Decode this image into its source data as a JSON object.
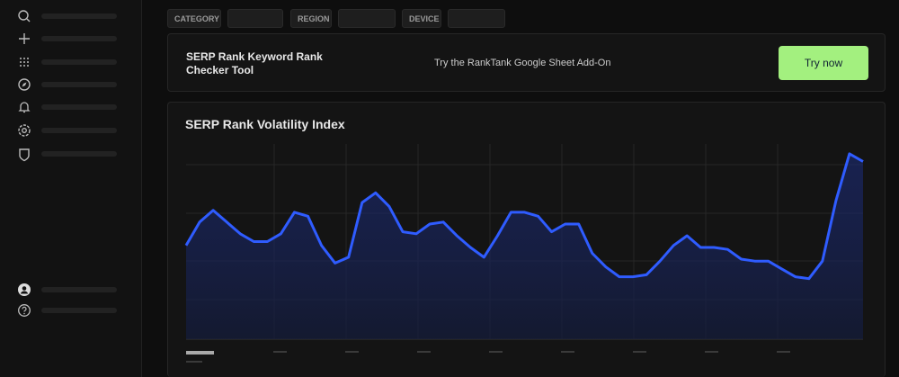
{
  "filters": [
    {
      "label": "CATEGORY"
    },
    {
      "label": "REGION"
    },
    {
      "label": "DEVICE"
    }
  ],
  "banner": {
    "title": "SERP Rank Keyword Rank Checker Tool",
    "text": "Try the RankTank Google Sheet Add-On",
    "button": "Try now"
  },
  "chart_data": {
    "type": "line",
    "title": "SERP Rank Volatility Index",
    "values": [
      48,
      60,
      66,
      60,
      54,
      50,
      50,
      54,
      65,
      63,
      48,
      39,
      42,
      70,
      75,
      68,
      55,
      54,
      59,
      60,
      53,
      47,
      42,
      53,
      65,
      65,
      63,
      55,
      59,
      59,
      44,
      37,
      32,
      32,
      33,
      40,
      48,
      53,
      47,
      47,
      46,
      41,
      40,
      40,
      36,
      32,
      31,
      40,
      71,
      95,
      91
    ],
    "color": "#2f5cff",
    "ylim": [
      0,
      100
    ]
  }
}
